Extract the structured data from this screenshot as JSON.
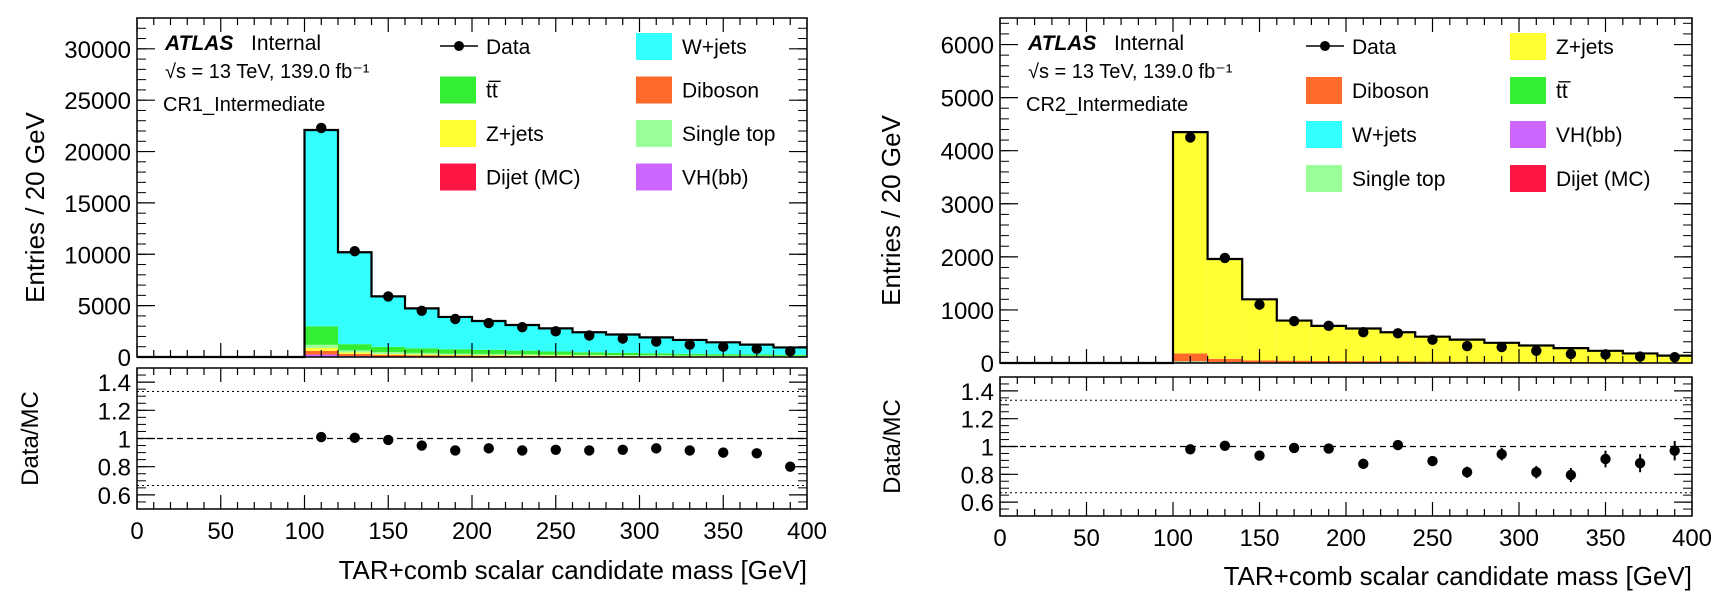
{
  "colors": {
    "W+jets": "#33ffff",
    "tt": "#33ee33",
    "Diboson": "#ff6a2a",
    "Z+jets": "#ffff33",
    "Single top": "#99ff99",
    "Dijet (MC)": "#ff1744",
    "VH(bb)": "#cc66ff"
  },
  "chart_data": [
    {
      "type": "bar",
      "panel": "left",
      "atlas_label": "ATLAS",
      "atlas_status": "Internal",
      "energy_label": "√s = 13 TeV, 139.0 fb⁻¹",
      "region_label": "CR1_Intermediate",
      "xlabel": "TAR+comb scalar candidate mass [GeV]",
      "ylabel": "Entries / 20 GeV",
      "ratio_ylabel": "Data/MC",
      "xlim": [
        0,
        400
      ],
      "ylim": [
        0,
        33000
      ],
      "ratio_ylim": [
        0.5,
        1.5
      ],
      "x_ticks": [
        "0",
        "50",
        "100",
        "150",
        "200",
        "250",
        "300",
        "350",
        "400"
      ],
      "y_ticks": [
        "0",
        "5000",
        "10000",
        "15000",
        "20000",
        "25000",
        "30000"
      ],
      "ratio_ticks": [
        "0.6",
        "0.8",
        "1",
        "1.2",
        "1.4"
      ],
      "legend": [
        {
          "label": "Data",
          "kind": "data"
        },
        {
          "label": "W+jets",
          "kind": "fill",
          "color_key": "W+jets"
        },
        {
          "label": "tt̅",
          "kind": "fill",
          "color_key": "tt"
        },
        {
          "label": "Diboson",
          "kind": "fill",
          "color_key": "Diboson"
        },
        {
          "label": "Z+jets",
          "kind": "fill",
          "color_key": "Z+jets"
        },
        {
          "label": "Single top",
          "kind": "fill",
          "color_key": "Single top"
        },
        {
          "label": "Dijet (MC)",
          "kind": "fill",
          "color_key": "Dijet (MC)"
        },
        {
          "label": "VH(bb)",
          "kind": "fill",
          "color_key": "VH(bb)"
        }
      ],
      "bin_edges": [
        100,
        120,
        140,
        160,
        180,
        200,
        220,
        240,
        260,
        280,
        300,
        320,
        340,
        360,
        380,
        400
      ],
      "stack_order": [
        "Dijet (MC)",
        "VH(bb)",
        "Diboson",
        "Z+jets",
        "Single top",
        "tt",
        "W+jets"
      ],
      "series": [
        {
          "key": "Dijet (MC)",
          "values": [
            40,
            20,
            10,
            10,
            5,
            5,
            5,
            5,
            5,
            5,
            5,
            5,
            5,
            5,
            5
          ]
        },
        {
          "key": "VH(bb)",
          "values": [
            200,
            80,
            40,
            30,
            25,
            20,
            18,
            15,
            12,
            10,
            10,
            8,
            8,
            6,
            5
          ]
        },
        {
          "key": "Diboson",
          "values": [
            350,
            200,
            160,
            130,
            110,
            100,
            90,
            80,
            70,
            65,
            60,
            55,
            50,
            45,
            40
          ]
        },
        {
          "key": "Z+jets",
          "values": [
            300,
            150,
            100,
            80,
            70,
            60,
            55,
            50,
            45,
            40,
            35,
            30,
            28,
            25,
            22
          ]
        },
        {
          "key": "Single top",
          "values": [
            300,
            200,
            180,
            150,
            130,
            120,
            100,
            90,
            80,
            70,
            60,
            55,
            50,
            45,
            40
          ]
        },
        {
          "key": "tt",
          "values": [
            1800,
            600,
            500,
            450,
            420,
            400,
            350,
            300,
            250,
            220,
            190,
            160,
            140,
            120,
            100
          ]
        },
        {
          "key": "W+jets",
          "values": [
            19110,
            8950,
            4910,
            3880,
            3140,
            2800,
            2500,
            2250,
            1950,
            1780,
            1550,
            1350,
            1150,
            960,
            720
          ]
        }
      ],
      "data": {
        "x": [
          110,
          130,
          150,
          170,
          190,
          210,
          230,
          250,
          270,
          290,
          310,
          330,
          350,
          370,
          390
        ],
        "y": [
          22300,
          10300,
          5900,
          4500,
          3700,
          3300,
          2900,
          2500,
          2100,
          1800,
          1500,
          1200,
          1000,
          800,
          550
        ]
      },
      "ratio": {
        "x": [
          110,
          130,
          150,
          170,
          190,
          210,
          230,
          250,
          270,
          290,
          310,
          330,
          350,
          370,
          390
        ],
        "y": [
          1.01,
          1.005,
          0.99,
          0.95,
          0.915,
          0.93,
          0.915,
          0.92,
          0.915,
          0.92,
          0.93,
          0.915,
          0.9,
          0.895,
          0.8
        ],
        "err": [
          0.005,
          0.01,
          0.012,
          0.015,
          0.017,
          0.018,
          0.02,
          0.02,
          0.022,
          0.024,
          0.026,
          0.028,
          0.03,
          0.032,
          0.035
        ]
      }
    },
    {
      "type": "bar",
      "panel": "right",
      "atlas_label": "ATLAS",
      "atlas_status": "Internal",
      "energy_label": "√s = 13 TeV, 139.0 fb⁻¹",
      "region_label": "CR2_Intermediate",
      "xlabel": "TAR+comb scalar candidate mass [GeV]",
      "ylabel": "Entries / 20 GeV",
      "ratio_ylabel": "Data/MC",
      "xlim": [
        0,
        400
      ],
      "ylim": [
        0,
        6500
      ],
      "ratio_ylim": [
        0.5,
        1.5
      ],
      "x_ticks": [
        "0",
        "50",
        "100",
        "150",
        "200",
        "250",
        "300",
        "350",
        "400"
      ],
      "y_ticks": [
        "0",
        "1000",
        "2000",
        "3000",
        "4000",
        "5000",
        "6000"
      ],
      "ratio_ticks": [
        "0.6",
        "0.8",
        "1",
        "1.2",
        "1.4"
      ],
      "legend": [
        {
          "label": "Data",
          "kind": "data"
        },
        {
          "label": "Z+jets",
          "kind": "fill",
          "color_key": "Z+jets"
        },
        {
          "label": "Diboson",
          "kind": "fill",
          "color_key": "Diboson"
        },
        {
          "label": "tt̅",
          "kind": "fill",
          "color_key": "tt"
        },
        {
          "label": "W+jets",
          "kind": "fill",
          "color_key": "W+jets"
        },
        {
          "label": "VH(bb)",
          "kind": "fill",
          "color_key": "VH(bb)"
        },
        {
          "label": "Single top",
          "kind": "fill",
          "color_key": "Single top"
        },
        {
          "label": "Dijet (MC)",
          "kind": "fill",
          "color_key": "Dijet (MC)"
        }
      ],
      "bin_edges": [
        100,
        120,
        140,
        160,
        180,
        200,
        220,
        240,
        260,
        280,
        300,
        320,
        340,
        360,
        380,
        400
      ],
      "stack_order": [
        "Dijet (MC)",
        "VH(bb)",
        "tt",
        "W+jets",
        "Single top",
        "Diboson",
        "Z+jets"
      ],
      "series": [
        {
          "key": "Dijet (MC)",
          "values": [
            5,
            2,
            1,
            1,
            1,
            1,
            1,
            1,
            1,
            1,
            1,
            1,
            1,
            1,
            1
          ]
        },
        {
          "key": "VH(bb)",
          "values": [
            10,
            5,
            3,
            2,
            2,
            2,
            2,
            1,
            1,
            1,
            1,
            1,
            1,
            1,
            1
          ]
        },
        {
          "key": "tt",
          "values": [
            5,
            5,
            3,
            2,
            2,
            2,
            2,
            1,
            1,
            1,
            1,
            1,
            1,
            1,
            1
          ]
        },
        {
          "key": "W+jets",
          "values": [
            5,
            3,
            2,
            2,
            2,
            1,
            1,
            1,
            1,
            1,
            1,
            1,
            1,
            1,
            1
          ]
        },
        {
          "key": "Single top",
          "values": [
            5,
            3,
            2,
            2,
            2,
            1,
            1,
            1,
            1,
            1,
            1,
            1,
            1,
            1,
            1
          ]
        },
        {
          "key": "Diboson",
          "values": [
            150,
            60,
            40,
            35,
            30,
            28,
            25,
            22,
            20,
            18,
            16,
            14,
            12,
            10,
            8
          ]
        },
        {
          "key": "Z+jets",
          "values": [
            4170,
            1882,
            1149,
            756,
            661,
            615,
            548,
            469,
            415,
            357,
            309,
            261,
            213,
            165,
            126
          ]
        }
      ],
      "data": {
        "x": [
          110,
          130,
          150,
          170,
          190,
          210,
          230,
          250,
          270,
          290,
          310,
          330,
          350,
          370,
          390
        ],
        "y": [
          4250,
          1980,
          1100,
          790,
          700,
          580,
          560,
          440,
          320,
          300,
          230,
          170,
          160,
          120,
          110
        ]
      },
      "ratio": {
        "x": [
          110,
          130,
          150,
          170,
          190,
          210,
          230,
          250,
          270,
          290,
          310,
          330,
          350,
          370,
          390
        ],
        "y": [
          0.98,
          1.005,
          0.935,
          0.99,
          0.985,
          0.875,
          1.01,
          0.895,
          0.815,
          0.945,
          0.815,
          0.795,
          0.91,
          0.88,
          0.97
        ],
        "err": [
          0.015,
          0.02,
          0.025,
          0.03,
          0.03,
          0.03,
          0.035,
          0.035,
          0.04,
          0.045,
          0.045,
          0.05,
          0.06,
          0.065,
          0.07
        ]
      }
    }
  ]
}
